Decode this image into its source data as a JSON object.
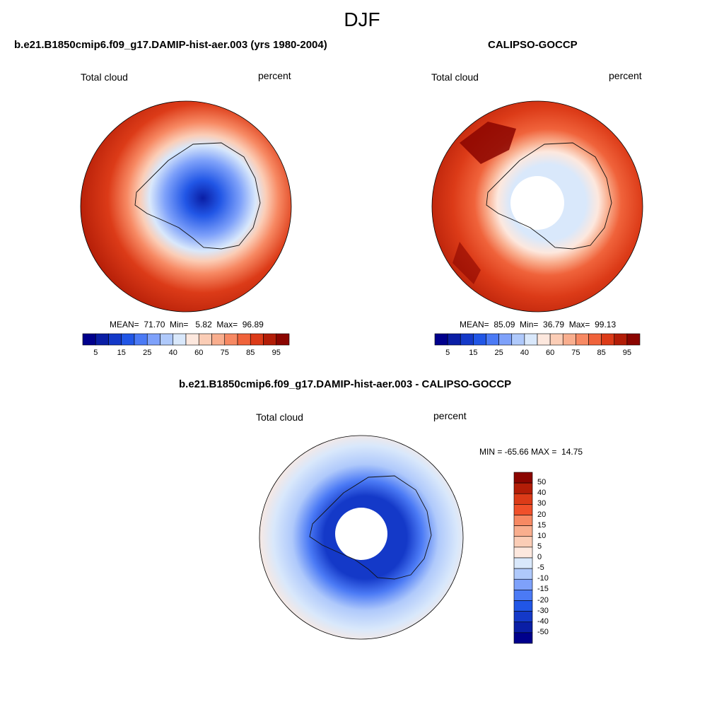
{
  "main_title": "DJF",
  "panels": [
    {
      "title": "b.e21.B1850cmip6.f09_g17.DAMIP-hist-aer.003 (yrs 1980-2004)",
      "left_label": "Total cloud",
      "right_label": "percent",
      "stats": "MEAN=  71.70  Min=   5.82  Max=  96.89",
      "has_hole": false
    },
    {
      "title": "CALIPSO-GOCCP",
      "left_label": "Total cloud",
      "right_label": "percent",
      "stats": "MEAN=  85.09  Min=  36.79  Max=  99.13",
      "has_hole": true
    }
  ],
  "diff_panel": {
    "title": "b.e21.B1850cmip6.f09_g17.DAMIP-hist-aer.003 - CALIPSO-GOCCP",
    "left_label": "Total cloud",
    "right_label": "percent",
    "minmax": "MIN = -65.66 MAX =  14.75"
  },
  "horizontal_colorbar": {
    "colors": [
      "#00008c",
      "#0a1ea5",
      "#1439c8",
      "#2156e6",
      "#4b7af5",
      "#7ea1fa",
      "#afc9fb",
      "#d9e8fb",
      "#fde8de",
      "#fbcdb6",
      "#f9ae8e",
      "#f78963",
      "#f0633b",
      "#dc3b18",
      "#b31d07",
      "#8b0500"
    ],
    "labels": [
      "5",
      "15",
      "25",
      "40",
      "60",
      "75",
      "85",
      "95"
    ]
  },
  "vertical_colorbar": {
    "colors": [
      "#8b0500",
      "#b31d07",
      "#dc3b18",
      "#f0502a",
      "#f78963",
      "#f9ae8e",
      "#fbcdb6",
      "#fde8de",
      "#d9e8fb",
      "#afc9fb",
      "#7ea1fa",
      "#4b7af5",
      "#2156e6",
      "#1439c8",
      "#0a1ea5",
      "#00008c"
    ],
    "labels": [
      "50",
      "40",
      "30",
      "20",
      "15",
      "10",
      "5",
      "0",
      "-5",
      "-10",
      "-15",
      "-20",
      "-30",
      "-40",
      "-50"
    ]
  }
}
